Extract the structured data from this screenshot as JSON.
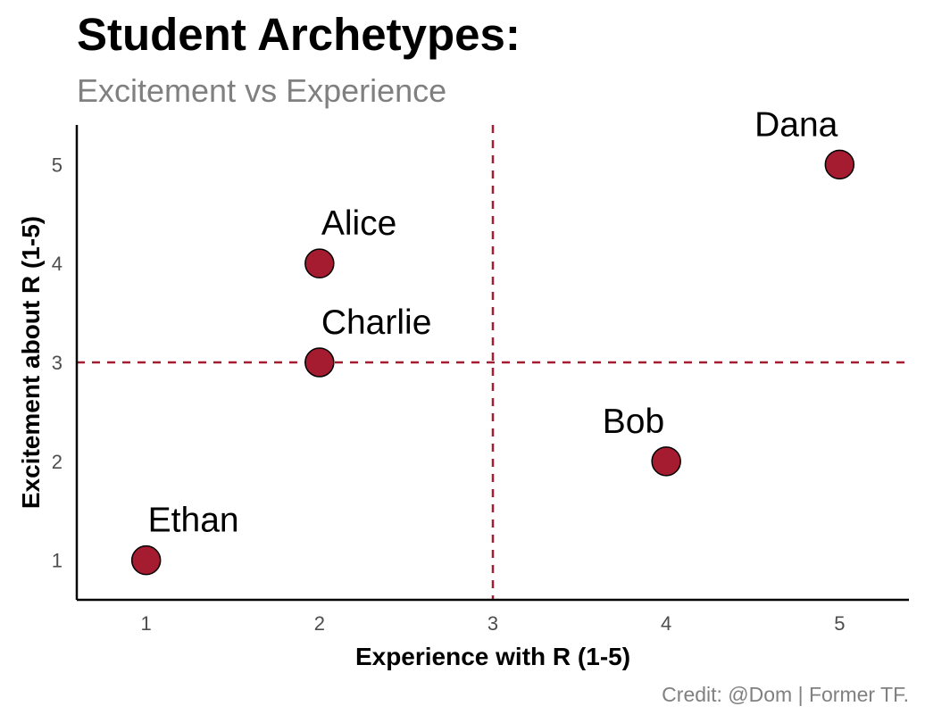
{
  "chart_data": {
    "type": "scatter",
    "title": "Student Archetypes:",
    "subtitle": "Excitement vs Experience",
    "xlabel": "Experience with R (1-5)",
    "ylabel": "Excitement about R (1-5)",
    "caption": "Credit: @Dom | Former TF.",
    "xlim": [
      0.6,
      5.4
    ],
    "ylim": [
      0.6,
      5.4
    ],
    "xticks": [
      1,
      2,
      3,
      4,
      5
    ],
    "yticks": [
      1,
      2,
      3,
      4,
      5
    ],
    "points": [
      {
        "label": "Alice",
        "x": 2,
        "y": 4
      },
      {
        "label": "Bob",
        "x": 4,
        "y": 2
      },
      {
        "label": "Charlie",
        "x": 2,
        "y": 3
      },
      {
        "label": "Dana",
        "x": 5,
        "y": 5
      },
      {
        "label": "Ethan",
        "x": 1,
        "y": 1
      }
    ],
    "reference_lines": {
      "vertical_x": 3,
      "horizontal_y": 3
    },
    "point_color": "#A51C30",
    "line_color": "#A51C30",
    "grid": false
  }
}
